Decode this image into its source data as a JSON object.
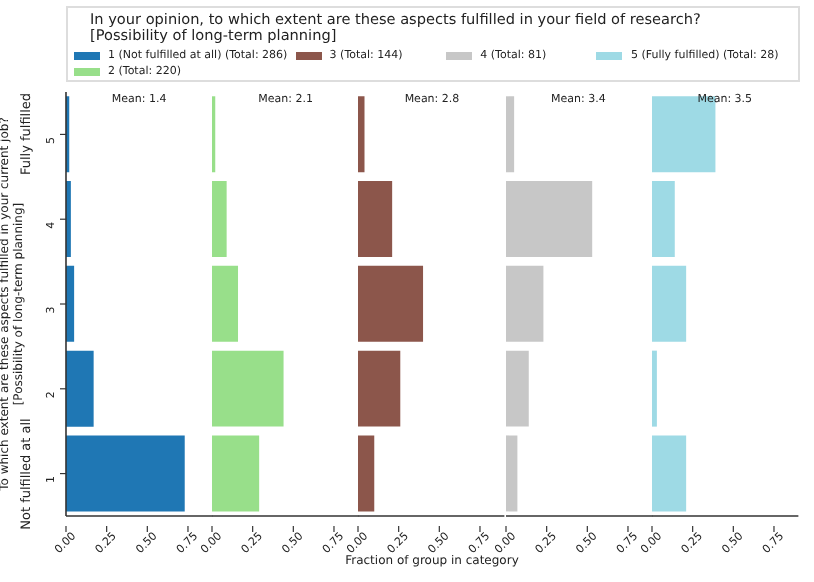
{
  "chart_data": [
    {
      "type": "bar",
      "orientation": "horizontal",
      "title": "Mean: 1.4",
      "ylabel": "To which extent are these aspects fulfilled in your current job? [Possibility of long-term planning]",
      "legend_title": "In your opinion, to which extent are these aspects fulfilled in your field of research? [Possibility of long-term planning]",
      "legend": "top",
      "categories": [
        "5",
        "4",
        "3",
        "2",
        "1"
      ],
      "series": [
        {
          "name": "1 (Not fulfilled at all) (Total: 286)",
          "color": "#1f77b4",
          "values": [
            0.02,
            0.03,
            0.05,
            0.17,
            0.73
          ]
        }
      ],
      "annotations": [
        "Fully fulfilled",
        "Not fulfilled at all"
      ],
      "xlim": [
        0,
        0.9
      ],
      "xticks": [
        {
          "value": 0,
          "label": "0.00"
        },
        {
          "value": 0.25,
          "label": "0.25"
        },
        {
          "value": 0.5,
          "label": "0.50"
        },
        {
          "value": 0.75,
          "label": "0.75"
        }
      ]
    },
    {
      "type": "bar",
      "orientation": "horizontal",
      "title": "Mean: 2.1",
      "legend": "top",
      "tick_labels": "x",
      "categories": [
        "5",
        "4",
        "3",
        "2",
        "1"
      ],
      "series": [
        {
          "name": "2 (Total: 220)",
          "color": "#98df8a",
          "values": [
            0.02,
            0.09,
            0.16,
            0.44,
            0.29
          ]
        }
      ],
      "xlim": [
        0,
        0.9
      ],
      "xticks": [
        {
          "value": 0,
          "label": "0.00"
        },
        {
          "value": 0.25,
          "label": "0.25"
        },
        {
          "value": 0.5,
          "label": "0.50"
        },
        {
          "value": 0.75,
          "label": "0.75"
        }
      ]
    },
    {
      "type": "bar",
      "orientation": "horizontal",
      "title": "Mean: 2.8",
      "xlabel": "Fraction of group in category",
      "legend": "top",
      "tick_labels": "x",
      "categories": [
        "5",
        "4",
        "3",
        "2",
        "1"
      ],
      "series": [
        {
          "name": "3 (Total: 144)",
          "color": "#8c564b",
          "values": [
            0.04,
            0.21,
            0.4,
            0.26,
            0.1
          ]
        }
      ],
      "xlim": [
        0,
        0.9
      ],
      "xticks": [
        {
          "value": 0,
          "label": "0.00"
        },
        {
          "value": 0.25,
          "label": "0.25"
        },
        {
          "value": 0.5,
          "label": "0.50"
        },
        {
          "value": 0.75,
          "label": "0.75"
        }
      ]
    },
    {
      "type": "bar",
      "orientation": "horizontal",
      "title": "Mean: 3.4",
      "legend": "top",
      "tick_labels": "x",
      "categories": [
        "5",
        "4",
        "3",
        "2",
        "1"
      ],
      "series": [
        {
          "name": "4 (Total: 81)",
          "color": "#c7c7c7",
          "values": [
            0.05,
            0.53,
            0.23,
            0.14,
            0.07
          ]
        }
      ],
      "xlim": [
        0,
        0.9
      ],
      "xticks": [
        {
          "value": 0,
          "label": "0.00"
        },
        {
          "value": 0.25,
          "label": "0.25"
        },
        {
          "value": 0.5,
          "label": "0.50"
        },
        {
          "value": 0.75,
          "label": "0.75"
        }
      ]
    },
    {
      "type": "bar",
      "orientation": "horizontal",
      "title": "Mean: 3.5",
      "legend": "top",
      "tick_labels": "x",
      "categories": [
        "5",
        "4",
        "3",
        "2",
        "1"
      ],
      "series": [
        {
          "name": "5 (Fully fulfilled) (Total: 28)",
          "color": "#9edae5",
          "values": [
            0.39,
            0.14,
            0.21,
            0.03,
            0.21
          ]
        }
      ],
      "xlim": [
        0,
        0.9
      ],
      "xticks": [
        {
          "value": 0,
          "label": "0.00"
        },
        {
          "value": 0.25,
          "label": "0.25"
        },
        {
          "value": 0.5,
          "label": "0.50"
        },
        {
          "value": 0.75,
          "label": "0.75"
        }
      ]
    }
  ]
}
